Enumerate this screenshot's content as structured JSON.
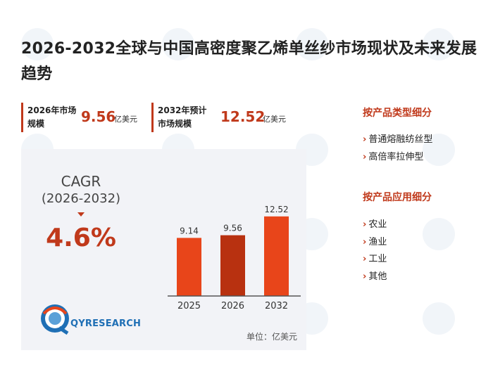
{
  "title": "2026-2032全球与中国高密度聚乙烯单丝纱市场现状及未来发展趋势",
  "stats": [
    {
      "label": "2026年市场规模",
      "value": "9.56",
      "unit": "亿美元"
    },
    {
      "label": "2032年预计市场规模",
      "value": "12.52",
      "unit": "亿美元"
    }
  ],
  "cagr": {
    "label": "CAGR",
    "range": "(2026-2032)",
    "value": "4.6%"
  },
  "logo_text": "QYRESEARCH",
  "unit_note": "单位：亿美元",
  "chart_data": {
    "type": "bar",
    "categories": [
      "2025",
      "2026",
      "2032"
    ],
    "values": [
      9.14,
      9.56,
      12.52
    ],
    "value_labels": [
      "9.14",
      "9.56",
      "12.52"
    ],
    "colors": [
      "#e8451a",
      "#b83110",
      "#e8451a"
    ],
    "ylim": [
      0,
      14
    ]
  },
  "segments": {
    "by_type": {
      "title": "按产品类型细分",
      "items": [
        "普通熔融纺丝型",
        "高倍率拉伸型"
      ]
    },
    "by_application": {
      "title": "按产品应用细分",
      "items": [
        "农业",
        "渔业",
        "工业",
        "其他"
      ]
    }
  }
}
